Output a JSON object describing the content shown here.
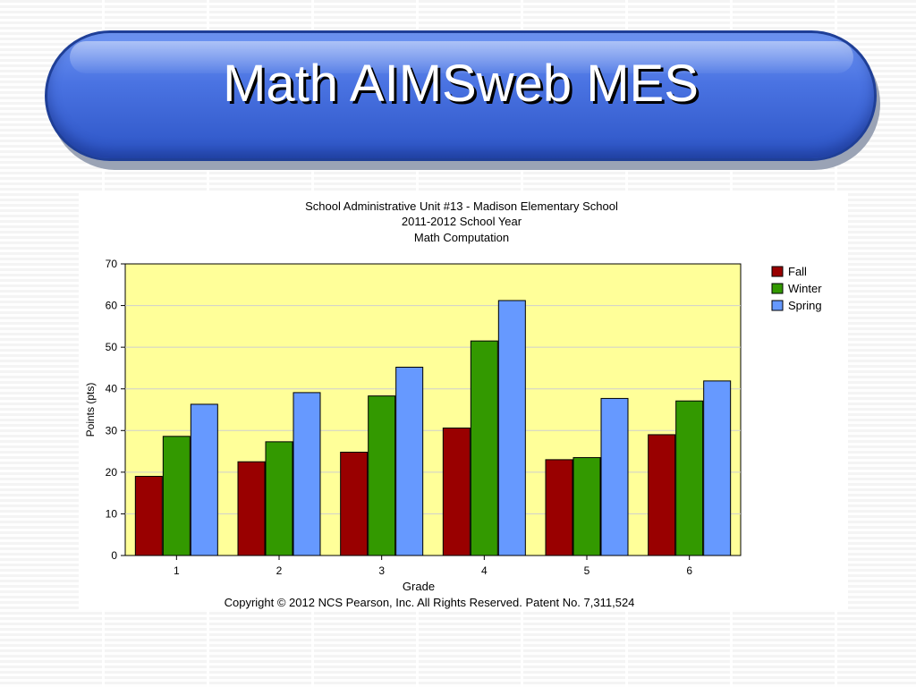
{
  "slide": {
    "title": "Math AIMSweb MES"
  },
  "chart_data": {
    "type": "bar",
    "title": "School Administrative Unit #13 - Madison Elementary School",
    "subtitle_lines": [
      "2011-2012 School Year",
      "Math Computation"
    ],
    "xlabel": "Grade",
    "ylabel": "Points (pts)",
    "categories": [
      "1",
      "2",
      "3",
      "4",
      "5",
      "6"
    ],
    "series": [
      {
        "name": "Fall",
        "color": "#990000",
        "values": [
          19,
          22.5,
          24.8,
          30.6,
          23,
          29
        ]
      },
      {
        "name": "Winter",
        "color": "#339900",
        "values": [
          28.6,
          27.3,
          38.3,
          51.5,
          23.5,
          37.1
        ]
      },
      {
        "name": "Spring",
        "color": "#6699ff",
        "values": [
          36.3,
          39.1,
          45.2,
          61.2,
          37.7,
          41.9
        ]
      }
    ],
    "ylim": [
      0,
      70
    ],
    "yticks": [
      0,
      10,
      20,
      30,
      40,
      50,
      60,
      70
    ],
    "grid": true,
    "plot_background": "#ffff99",
    "legend_position": "right",
    "footer": "Copyright © 2012 NCS Pearson, Inc.  All Rights Reserved.  Patent No. 7,311,524"
  }
}
